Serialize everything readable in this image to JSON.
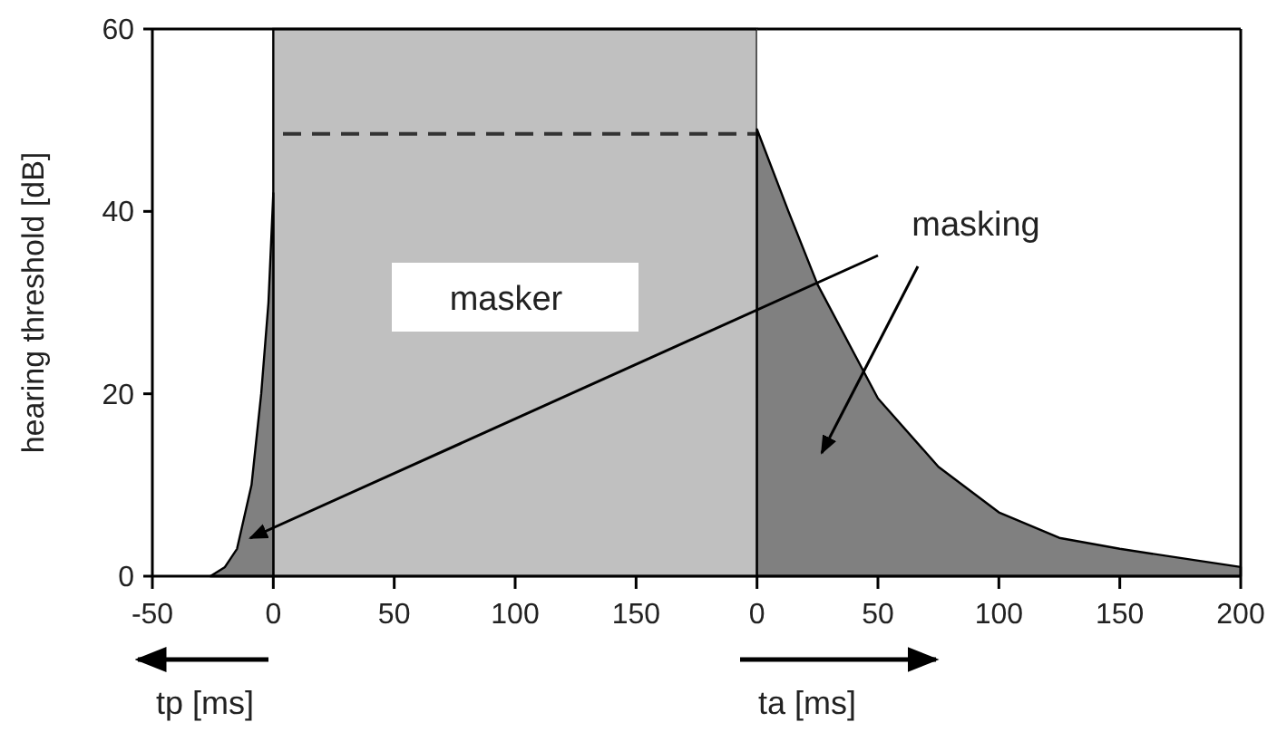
{
  "chart_data": [
    {
      "type": "area",
      "ylabel": "hearing threshold [dB]",
      "xlim": [
        -50,
        200
      ],
      "xticks": [
        -50,
        0,
        50,
        100,
        150
      ],
      "ylim": [
        0,
        60
      ],
      "yticks": [
        0,
        20,
        40,
        60
      ],
      "bands": [
        {
          "axis": "x",
          "from": 0,
          "to": 200,
          "label": "masker",
          "color": "#c0c0c0"
        }
      ],
      "series": [
        {
          "color": "#808080",
          "x": [
            -26,
            -20,
            -15,
            -9,
            -5,
            -2,
            0
          ],
          "values": [
            0,
            1,
            3,
            10,
            20,
            30,
            42
          ]
        },
        {
          "type": "line",
          "color": "#333333",
          "line_style": "dashed",
          "x": [
            4,
            200
          ],
          "values": [
            48.5,
            48.5
          ]
        }
      ],
      "annotations": [
        "tp [ms]"
      ]
    },
    {
      "type": "area",
      "xlim": [
        0,
        200
      ],
      "xticks": [
        0,
        50,
        100,
        150,
        200
      ],
      "ylim": [
        0,
        60
      ],
      "tick_labels": "x",
      "series": [
        {
          "color": "#808080",
          "x": [
            0,
            13,
            25,
            50,
            75,
            100,
            125,
            150,
            175,
            200
          ],
          "values": [
            49,
            40,
            32,
            19.5,
            12,
            7,
            4.2,
            3,
            2,
            1
          ]
        }
      ],
      "annotations": [
        "masking",
        "ta [ms]"
      ]
    }
  ]
}
